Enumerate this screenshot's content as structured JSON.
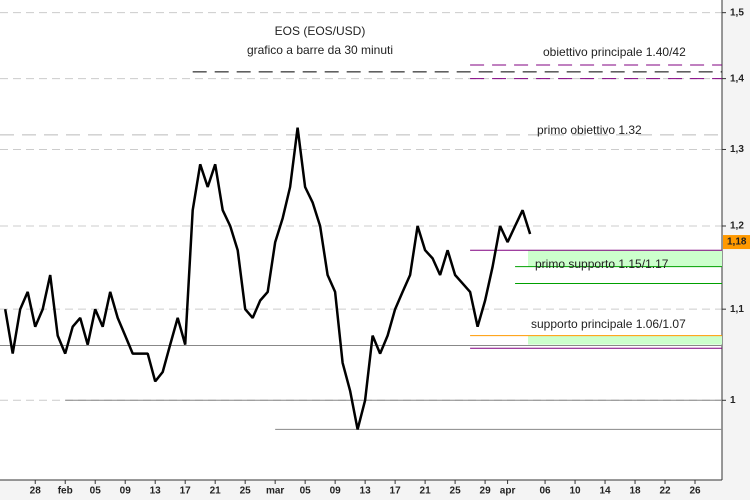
{
  "chart_data": {
    "type": "line",
    "title": "EOS (EOS/USD)",
    "subtitle": "grafico a barre da 30 minuti",
    "annotations": [
      "obiettivo principale 1.40/42",
      "primo obiettivo 1.32",
      "primo supporto 1.15/1.17",
      "supporto principale 1.06/1.07"
    ],
    "log_scale": true,
    "grid": true,
    "color": "#000000",
    "x": [
      -4,
      -3,
      -2,
      -1,
      0,
      1,
      2,
      3,
      4,
      5,
      6,
      7,
      8,
      9,
      10,
      11,
      12,
      13,
      14,
      15,
      16,
      17,
      18,
      19,
      20,
      21,
      22,
      23,
      24,
      25,
      26,
      27,
      28,
      29,
      30,
      31,
      32,
      33,
      34,
      35,
      36,
      37,
      38,
      39,
      40,
      41,
      42,
      43,
      44,
      45,
      46,
      47,
      48,
      49,
      50,
      51,
      52,
      53,
      54,
      55,
      56,
      57,
      58,
      59,
      60,
      61,
      62,
      63,
      64,
      65,
      66
    ],
    "values": [
      1.1,
      1.05,
      1.1,
      1.12,
      1.08,
      1.1,
      1.14,
      1.07,
      1.05,
      1.08,
      1.09,
      1.06,
      1.1,
      1.08,
      1.12,
      1.09,
      1.07,
      1.05,
      1.05,
      1.05,
      1.02,
      1.03,
      1.06,
      1.09,
      1.06,
      1.22,
      1.28,
      1.25,
      1.28,
      1.22,
      1.2,
      1.17,
      1.1,
      1.09,
      1.11,
      1.12,
      1.18,
      1.21,
      1.25,
      1.33,
      1.25,
      1.23,
      1.2,
      1.14,
      1.12,
      1.04,
      1.01,
      0.97,
      1.0,
      1.07,
      1.05,
      1.07,
      1.1,
      1.12,
      1.14,
      1.2,
      1.17,
      1.16,
      1.14,
      1.17,
      1.14,
      1.13,
      1.12,
      1.08,
      1.11,
      1.15,
      1.2,
      1.18,
      1.2,
      1.22,
      1.19
    ],
    "xlim": [
      -4.7,
      91.6
    ],
    "ylim": [
      0.92,
      1.52
    ],
    "xticks": [
      {
        "value": 0,
        "label": "28"
      },
      {
        "value": 4,
        "label": "feb"
      },
      {
        "value": 8,
        "label": "05"
      },
      {
        "value": 12,
        "label": "09"
      },
      {
        "value": 16,
        "label": "13"
      },
      {
        "value": 20,
        "label": "17"
      },
      {
        "value": 24,
        "label": "21"
      },
      {
        "value": 28,
        "label": "25"
      },
      {
        "value": 32,
        "label": "mar"
      },
      {
        "value": 36,
        "label": "05"
      },
      {
        "value": 40,
        "label": "09"
      },
      {
        "value": 44,
        "label": "13"
      },
      {
        "value": 48,
        "label": "17"
      },
      {
        "value": 52,
        "label": "21"
      },
      {
        "value": 56,
        "label": "25"
      },
      {
        "value": 60,
        "label": "29"
      },
      {
        "value": 63,
        "label": "apr"
      },
      {
        "value": 68,
        "label": "06"
      },
      {
        "value": 72,
        "label": "10"
      },
      {
        "value": 76,
        "label": "14"
      },
      {
        "value": 80,
        "label": "18"
      },
      {
        "value": 84,
        "label": "22"
      },
      {
        "value": 88,
        "label": "26"
      }
    ],
    "yticks": [
      {
        "value": 1,
        "label": "1"
      },
      {
        "value": 1.1,
        "label": "1,1"
      },
      {
        "value": 1.2,
        "label": "1,2"
      },
      {
        "value": 1.3,
        "label": "1,3"
      },
      {
        "value": 1.4,
        "label": "1,4"
      },
      {
        "value": 1.5,
        "label": "1,5"
      }
    ],
    "zones": [
      {
        "from": 1.15,
        "to": 1.17,
        "color": "#ccffcc"
      },
      {
        "from": 1.06,
        "to": 1.07,
        "color": "#ccffcc"
      }
    ],
    "levels": [
      {
        "value": 1.42,
        "x0": 58,
        "color": "#800080",
        "dashed": true
      },
      {
        "value": 1.4,
        "x0": 58,
        "color": "#800080",
        "dashed": true
      },
      {
        "value": 1.41,
        "x0": 21,
        "color": "#000000",
        "dashed": true
      },
      {
        "value": 1.32,
        "x0": -4.7,
        "color": "#bbbbbb",
        "dashed": true
      },
      {
        "value": 1.17,
        "x0": 58,
        "color": "#800080",
        "dashed": false
      },
      {
        "value": 1.15,
        "x0": 64,
        "color": "#00a000",
        "dashed": false
      },
      {
        "value": 1.13,
        "x0": 64,
        "color": "#00a000",
        "dashed": false
      },
      {
        "value": 1.07,
        "x0": 58,
        "color": "#ff9900",
        "dashed": false
      },
      {
        "value": 1.056,
        "x0": 58,
        "color": "#800080",
        "dashed": false
      },
      {
        "value": 1.059,
        "x0": -4.7,
        "color": "#888888",
        "dashed": false
      },
      {
        "value": 1.0,
        "x0": 4,
        "color": "#888888",
        "dashed": false
      },
      {
        "value": 0.97,
        "x0": 32,
        "color": "#888888",
        "dashed": false
      }
    ],
    "last_price": {
      "value": 1.18,
      "label": "1,18",
      "color": "#ff9900"
    }
  }
}
